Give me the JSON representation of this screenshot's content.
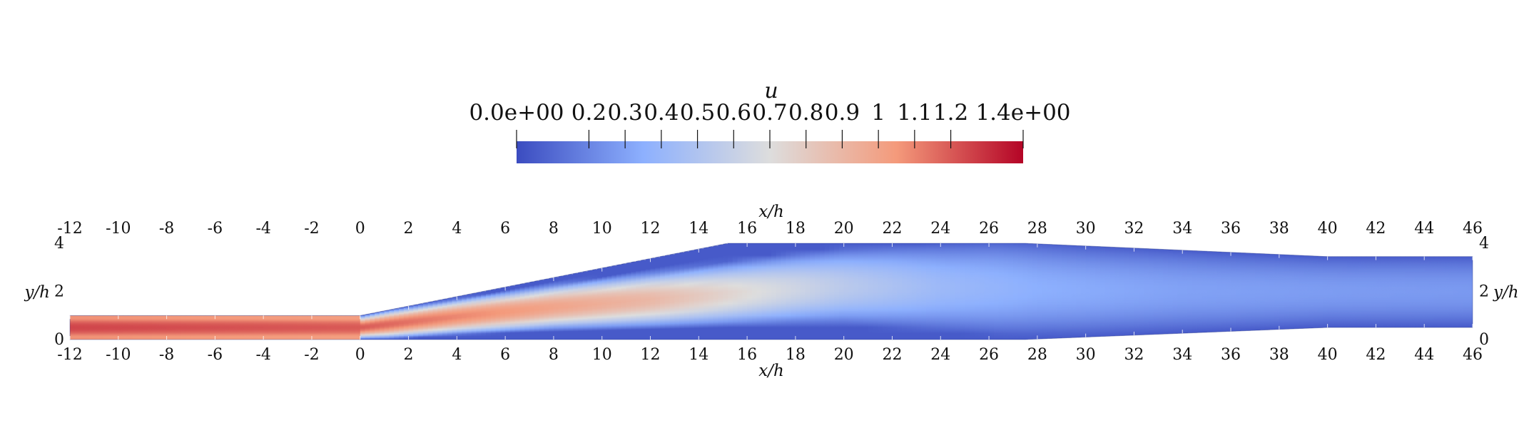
{
  "chart_data": {
    "type": "heatmap",
    "variable": "u",
    "colorbar": {
      "title": "u",
      "range": [
        0.0,
        1.4
      ],
      "tick_values": [
        0.0,
        0.2,
        0.3,
        0.4,
        0.5,
        0.6,
        0.7,
        0.8,
        0.9,
        1.0,
        1.1,
        1.2,
        1.4
      ],
      "tick_labels": [
        "0.0e+00",
        "0.2",
        "0.3",
        "0.4",
        "0.5",
        "0.6",
        "0.7",
        "0.8",
        "0.9",
        "1",
        "1.1",
        "1.2",
        "1.4e+00"
      ],
      "colormap": [
        "#3b4cc0",
        "#8db0fe",
        "#dddddd",
        "#f49a7b",
        "#b40426"
      ],
      "placement": "top-center"
    },
    "xlabel": "x/h",
    "ylabel": "y/h",
    "xlim": [
      -12,
      46
    ],
    "ylim": [
      0,
      4
    ],
    "x_ticks": [
      -12,
      -10,
      -8,
      -6,
      -4,
      -2,
      0,
      2,
      4,
      6,
      8,
      10,
      12,
      14,
      16,
      18,
      20,
      22,
      24,
      26,
      28,
      30,
      32,
      34,
      36,
      38,
      40,
      42,
      44,
      46
    ],
    "y_ticks": [
      0,
      2,
      4
    ],
    "domain_upper_wall": {
      "x": [
        -12,
        0,
        15.2,
        27.5,
        40,
        46
      ],
      "y": [
        1,
        1,
        4,
        4,
        3.45,
        3.45
      ]
    },
    "domain_lower_wall": {
      "x": [
        -12,
        27.5,
        40,
        46
      ],
      "y": [
        0,
        0,
        0.5,
        0.5
      ]
    },
    "jet_centerline": {
      "x": [
        -12,
        0,
        4,
        8,
        12,
        16,
        18,
        20,
        22,
        26,
        30,
        36,
        46
      ],
      "y": [
        0.5,
        0.5,
        0.95,
        1.35,
        1.65,
        1.95,
        2.1,
        2.2,
        2.2,
        2.15,
        2.05,
        2.0,
        2.0
      ]
    },
    "core_velocity": {
      "x": [
        -12,
        0,
        4,
        8,
        12,
        16,
        20,
        24,
        28,
        34,
        40,
        46
      ],
      "u": [
        1.25,
        1.2,
        1.1,
        1.0,
        0.9,
        0.72,
        0.55,
        0.42,
        0.35,
        0.3,
        0.28,
        0.27
      ]
    },
    "wall_velocity": 0.05,
    "grid": false
  }
}
